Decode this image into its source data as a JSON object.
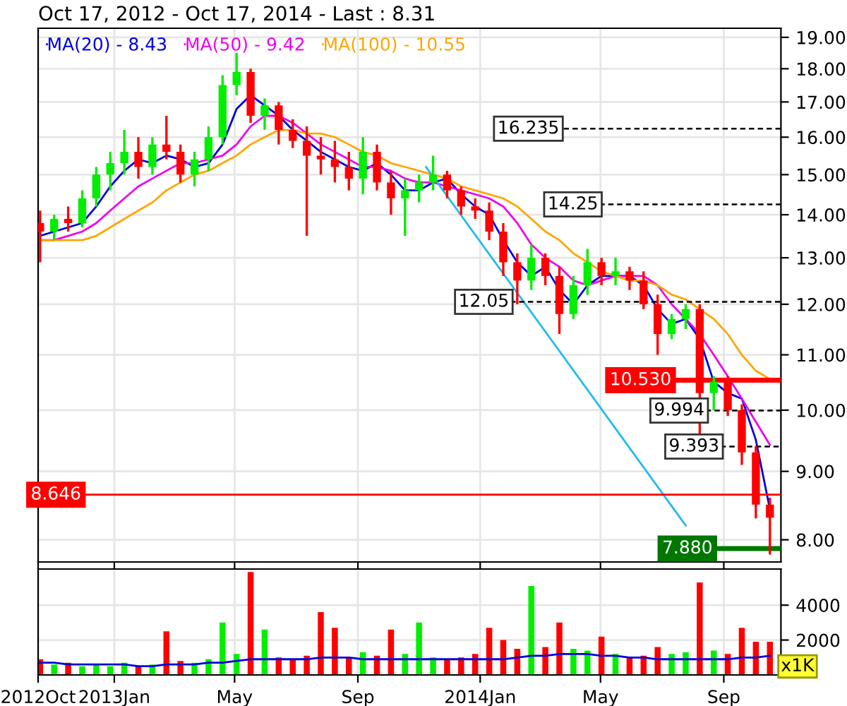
{
  "chart_data": [
    {
      "type": "candlestick",
      "title": "Oct 17, 2012 - Oct 17, 2014 - Last : 8.31",
      "log": "y",
      "tick_labels": "y",
      "grid": true,
      "legend": "top left",
      "x": [
        "2012-10-19",
        "2012-11-02",
        "2012-11-16",
        "2012-11-30",
        "2012-12-14",
        "2012-12-28",
        "2013-01-11",
        "2013-01-25",
        "2013-02-08",
        "2013-02-22",
        "2013-03-08",
        "2013-03-22",
        "2013-04-05",
        "2013-04-19",
        "2013-05-03",
        "2013-05-17",
        "2013-05-31",
        "2013-06-14",
        "2013-06-28",
        "2013-07-12",
        "2013-07-26",
        "2013-08-09",
        "2013-08-23",
        "2013-09-06",
        "2013-09-20",
        "2013-10-04",
        "2013-10-18",
        "2013-11-01",
        "2013-11-15",
        "2013-11-29",
        "2013-12-13",
        "2013-12-27",
        "2014-01-10",
        "2014-01-24",
        "2014-02-07",
        "2014-02-21",
        "2014-03-07",
        "2014-03-21",
        "2014-04-04",
        "2014-04-18",
        "2014-05-02",
        "2014-05-16",
        "2014-05-30",
        "2014-06-13",
        "2014-06-27",
        "2014-07-11",
        "2014-07-25",
        "2014-08-08",
        "2014-08-22",
        "2014-09-05",
        "2014-09-19",
        "2014-10-03",
        "2014-10-17"
      ],
      "ohlc": [
        [
          13.8,
          14.1,
          12.9,
          13.6
        ],
        [
          13.6,
          14.0,
          13.4,
          13.9
        ],
        [
          13.9,
          14.2,
          13.6,
          13.8
        ],
        [
          13.8,
          14.6,
          13.7,
          14.4
        ],
        [
          14.4,
          15.2,
          14.2,
          15.0
        ],
        [
          15.0,
          15.6,
          14.6,
          15.3
        ],
        [
          15.3,
          16.2,
          15.0,
          15.6
        ],
        [
          15.6,
          16.0,
          14.9,
          15.2
        ],
        [
          15.2,
          16.0,
          15.0,
          15.8
        ],
        [
          15.8,
          16.6,
          15.4,
          15.6
        ],
        [
          15.6,
          15.8,
          14.8,
          15.0
        ],
        [
          15.0,
          15.6,
          14.7,
          15.4
        ],
        [
          15.4,
          16.3,
          15.1,
          16.0
        ],
        [
          16.0,
          17.8,
          15.8,
          17.5
        ],
        [
          17.5,
          18.5,
          17.2,
          17.9
        ],
        [
          17.9,
          18.0,
          16.4,
          16.6
        ],
        [
          16.6,
          17.1,
          16.2,
          16.9
        ],
        [
          16.9,
          17.0,
          15.8,
          16.2
        ],
        [
          16.2,
          16.5,
          15.7,
          15.9
        ],
        [
          15.9,
          16.3,
          13.5,
          15.5
        ],
        [
          15.5,
          16.0,
          15.0,
          15.4
        ],
        [
          15.4,
          15.9,
          14.8,
          15.2
        ],
        [
          15.2,
          15.6,
          14.6,
          14.9
        ],
        [
          14.9,
          16.0,
          14.5,
          15.6
        ],
        [
          15.6,
          15.8,
          14.6,
          14.8
        ],
        [
          14.8,
          15.1,
          14.0,
          14.4
        ],
        [
          14.4,
          14.9,
          13.5,
          14.6
        ],
        [
          14.6,
          15.0,
          14.3,
          14.8
        ],
        [
          14.8,
          15.5,
          14.6,
          15.0
        ],
        [
          15.0,
          15.1,
          14.4,
          14.6
        ],
        [
          14.6,
          14.7,
          14.0,
          14.2
        ],
        [
          14.2,
          14.4,
          13.9,
          14.1
        ],
        [
          14.1,
          14.3,
          13.4,
          13.6
        ],
        [
          13.6,
          13.8,
          12.6,
          12.9
        ],
        [
          12.9,
          13.1,
          12.0,
          12.5
        ],
        [
          12.5,
          13.3,
          12.3,
          13.0
        ],
        [
          13.0,
          13.1,
          12.4,
          12.6
        ],
        [
          12.6,
          12.8,
          11.4,
          11.8
        ],
        [
          11.8,
          12.6,
          11.7,
          12.4
        ],
        [
          12.4,
          13.2,
          12.2,
          12.9
        ],
        [
          12.9,
          13.0,
          12.4,
          12.6
        ],
        [
          12.6,
          13.0,
          12.4,
          12.7
        ],
        [
          12.7,
          12.8,
          12.3,
          12.5
        ],
        [
          12.5,
          12.7,
          11.9,
          12.0
        ],
        [
          12.0,
          12.2,
          11.0,
          11.4
        ],
        [
          11.4,
          11.8,
          11.3,
          11.7
        ],
        [
          11.7,
          12.0,
          11.5,
          11.9
        ],
        [
          11.9,
          12.0,
          9.6,
          10.3
        ],
        [
          10.3,
          10.6,
          10.0,
          10.5
        ],
        [
          10.5,
          10.6,
          9.9,
          10.0
        ],
        [
          10.0,
          10.1,
          9.1,
          9.3
        ],
        [
          9.3,
          9.4,
          8.3,
          8.5
        ],
        [
          8.5,
          8.6,
          7.8,
          8.31
        ]
      ],
      "colors": [
        "#ff0000",
        "#00ee00",
        "#ff0000",
        "#00ee00",
        "#00ee00",
        "#00ee00",
        "#00ee00",
        "#ff0000",
        "#00ee00",
        "#ff0000",
        "#ff0000",
        "#00ee00",
        "#00ee00",
        "#00ee00",
        "#00ee00",
        "#ff0000",
        "#00ee00",
        "#ff0000",
        "#ff0000",
        "#ff0000",
        "#ff0000",
        "#ff0000",
        "#ff0000",
        "#00ee00",
        "#ff0000",
        "#ff0000",
        "#00ee00",
        "#00ee00",
        "#00ee00",
        "#ff0000",
        "#ff0000",
        "#ff0000",
        "#ff0000",
        "#ff0000",
        "#ff0000",
        "#00ee00",
        "#ff0000",
        "#ff0000",
        "#00ee00",
        "#00ee00",
        "#ff0000",
        "#00ee00",
        "#ff0000",
        "#ff0000",
        "#ff0000",
        "#00ee00",
        "#00ee00",
        "#ff0000",
        "#00ee00",
        "#ff0000",
        "#ff0000",
        "#ff0000",
        "#ff0000"
      ],
      "series": [
        {
          "type": "line",
          "name": "MA(20) - 8.43",
          "color": "#0000dd",
          "values": [
            13.5,
            13.6,
            13.7,
            13.8,
            14.2,
            14.7,
            15.1,
            15.4,
            15.3,
            15.5,
            15.4,
            15.2,
            15.3,
            15.8,
            16.8,
            17.2,
            16.9,
            16.6,
            16.2,
            15.9,
            15.6,
            15.4,
            15.2,
            15.1,
            15.3,
            15.0,
            14.6,
            14.6,
            14.8,
            14.9,
            14.5,
            14.2,
            14.0,
            13.4,
            12.9,
            12.6,
            12.8,
            12.3,
            12.0,
            12.4,
            12.6,
            12.6,
            12.6,
            12.4,
            11.9,
            11.6,
            11.7,
            11.3,
            10.5,
            10.3,
            10.2,
            9.5,
            8.43
          ]
        },
        {
          "type": "line",
          "name": "MA(50) - 9.42",
          "color": "#ee00ee",
          "values": [
            13.4,
            13.4,
            13.5,
            13.6,
            13.8,
            14.1,
            14.4,
            14.7,
            14.9,
            15.1,
            15.3,
            15.3,
            15.4,
            15.5,
            15.8,
            16.3,
            16.6,
            16.6,
            16.4,
            16.1,
            15.8,
            15.6,
            15.4,
            15.2,
            15.2,
            15.1,
            14.9,
            14.8,
            14.8,
            14.7,
            14.6,
            14.5,
            14.4,
            14.2,
            13.8,
            13.3,
            13.0,
            12.8,
            12.5,
            12.4,
            12.5,
            12.6,
            12.6,
            12.6,
            12.4,
            12.0,
            11.7,
            11.4,
            11.0,
            10.6,
            10.2,
            9.8,
            9.42
          ]
        },
        {
          "type": "line",
          "name": "MA(100) - 10.55",
          "color": "#ffa500",
          "values": [
            13.4,
            13.4,
            13.4,
            13.4,
            13.5,
            13.7,
            13.9,
            14.1,
            14.3,
            14.6,
            14.8,
            15.0,
            15.1,
            15.3,
            15.5,
            15.8,
            16.0,
            16.2,
            16.2,
            16.1,
            16.1,
            16.0,
            15.8,
            15.6,
            15.5,
            15.3,
            15.2,
            15.1,
            15.0,
            14.9,
            14.7,
            14.6,
            14.5,
            14.4,
            14.2,
            13.9,
            13.6,
            13.4,
            13.1,
            12.9,
            12.7,
            12.6,
            12.5,
            12.5,
            12.4,
            12.2,
            12.1,
            11.9,
            11.7,
            11.4,
            11.0,
            10.7,
            10.55
          ]
        },
        {
          "type": "line",
          "color": "#22bbee",
          "x": [
            "2013-11-08",
            "2014-07-25"
          ],
          "values": [
            15.2,
            8.2
          ]
        }
      ],
      "ref_lines": [
        {
          "axis": "y",
          "value": 16.235,
          "label": "16.235",
          "color": "#000000",
          "line_style": "dashed"
        },
        {
          "axis": "y",
          "value": 14.25,
          "label": "14.25",
          "color": "#000000",
          "line_style": "dashed"
        },
        {
          "axis": "y",
          "value": 12.05,
          "label": "12.05",
          "color": "#000000",
          "line_style": "dashed"
        },
        {
          "axis": "y",
          "value": 10.53,
          "label": "10.530",
          "color": "#ff0000",
          "line_style": "solid"
        },
        {
          "axis": "y",
          "value": 9.994,
          "label": "9.994",
          "color": "#000000",
          "line_style": "dashed"
        },
        {
          "axis": "y",
          "value": 9.393,
          "label": "9.393",
          "color": "#000000",
          "line_style": "dashed"
        },
        {
          "axis": "y",
          "value": 8.646,
          "label": "8.646",
          "color": "#ff0000",
          "line_style": "solid"
        },
        {
          "axis": "y",
          "value": 7.88,
          "label": "7.880",
          "color": "#007700",
          "line_style": "solid"
        }
      ],
      "xlim": [
        "2012-10-17",
        "2014-10-28"
      ],
      "ylim": [
        7.7,
        19.3
      ],
      "yticks": [
        {
          "value": 8,
          "label": "8.00"
        },
        {
          "value": 9,
          "label": "9.00"
        },
        {
          "value": 10,
          "label": "10.00"
        },
        {
          "value": 11,
          "label": "11.00"
        },
        {
          "value": 12,
          "label": "12.00"
        },
        {
          "value": 13,
          "label": "13.00"
        },
        {
          "value": 14,
          "label": "14.00"
        },
        {
          "value": 15,
          "label": "15.00"
        },
        {
          "value": 16,
          "label": "16.00"
        },
        {
          "value": 17,
          "label": "17.00"
        },
        {
          "value": 18,
          "label": "18.00"
        },
        {
          "value": 19,
          "label": "19.00"
        }
      ]
    },
    {
      "type": "bar",
      "ylabel": "x1K",
      "grid": true,
      "x": [
        "2012-10-19",
        "2012-11-02",
        "2012-11-16",
        "2012-11-30",
        "2012-12-14",
        "2012-12-28",
        "2013-01-11",
        "2013-01-25",
        "2013-02-08",
        "2013-02-22",
        "2013-03-08",
        "2013-03-22",
        "2013-04-05",
        "2013-04-19",
        "2013-05-03",
        "2013-05-17",
        "2013-05-31",
        "2013-06-14",
        "2013-06-28",
        "2013-07-12",
        "2013-07-26",
        "2013-08-09",
        "2013-08-23",
        "2013-09-06",
        "2013-09-20",
        "2013-10-04",
        "2013-10-18",
        "2013-11-01",
        "2013-11-15",
        "2013-11-29",
        "2013-12-13",
        "2013-12-27",
        "2014-01-10",
        "2014-01-24",
        "2014-02-07",
        "2014-02-21",
        "2014-03-07",
        "2014-03-21",
        "2014-04-04",
        "2014-04-18",
        "2014-05-02",
        "2014-05-16",
        "2014-05-30",
        "2014-06-13",
        "2014-06-27",
        "2014-07-11",
        "2014-07-25",
        "2014-08-08",
        "2014-08-22",
        "2014-09-05",
        "2014-09-19",
        "2014-10-03",
        "2014-10-17"
      ],
      "series": [
        {
          "type": "bar",
          "colors": [
            "#ff0000",
            "#00ee00",
            "#ff0000",
            "#00ee00",
            "#00ee00",
            "#00ee00",
            "#00ee00",
            "#ff0000",
            "#00ee00",
            "#ff0000",
            "#ff0000",
            "#00ee00",
            "#00ee00",
            "#00ee00",
            "#00ee00",
            "#ff0000",
            "#00ee00",
            "#ff0000",
            "#ff0000",
            "#ff0000",
            "#ff0000",
            "#ff0000",
            "#ff0000",
            "#00ee00",
            "#ff0000",
            "#ff0000",
            "#00ee00",
            "#00ee00",
            "#00ee00",
            "#ff0000",
            "#ff0000",
            "#ff0000",
            "#ff0000",
            "#ff0000",
            "#ff0000",
            "#00ee00",
            "#ff0000",
            "#ff0000",
            "#00ee00",
            "#00ee00",
            "#ff0000",
            "#00ee00",
            "#ff0000",
            "#ff0000",
            "#ff0000",
            "#00ee00",
            "#00ee00",
            "#ff0000",
            "#00ee00",
            "#ff0000",
            "#ff0000",
            "#ff0000",
            "#ff0000"
          ],
          "values": [
            900,
            600,
            700,
            500,
            600,
            500,
            700,
            500,
            600,
            2500,
            800,
            700,
            900,
            3000,
            1200,
            5900,
            2600,
            1000,
            900,
            1100,
            3600,
            2700,
            1000,
            1300,
            1100,
            2600,
            1200,
            3000,
            1000,
            900,
            1000,
            1200,
            2700,
            2000,
            1500,
            5100,
            1600,
            3000,
            1500,
            1400,
            2200,
            1200,
            1000,
            1100,
            1600,
            1200,
            1300,
            5300,
            1400,
            1200,
            2700,
            1900,
            1900
          ]
        },
        {
          "type": "line",
          "color": "#0000dd",
          "values": [
            700,
            700,
            600,
            600,
            600,
            600,
            600,
            500,
            500,
            600,
            600,
            600,
            700,
            700,
            800,
            900,
            900,
            900,
            900,
            900,
            1000,
            1000,
            1000,
            900,
            900,
            900,
            900,
            900,
            900,
            900,
            900,
            900,
            900,
            900,
            1000,
            1100,
            1100,
            1200,
            1200,
            1200,
            1100,
            1100,
            1000,
            1000,
            900,
            900,
            900,
            900,
            900,
            900,
            1000,
            1000,
            1100
          ]
        }
      ],
      "xlim": [
        "2012-10-17",
        "2014-10-28"
      ],
      "xticks": [
        {
          "value": "2012-10-17",
          "label": "2012Oct"
        },
        {
          "value": "2013-01-01",
          "label": "2013Jan"
        },
        {
          "value": "2013-05-01",
          "label": "May"
        },
        {
          "value": "2013-09-01",
          "label": "Sep"
        },
        {
          "value": "2014-01-01",
          "label": "2014Jan"
        },
        {
          "value": "2014-05-01",
          "label": "May"
        },
        {
          "value": "2014-09-01",
          "label": "Sep"
        }
      ],
      "ylim": [
        0,
        6070
      ],
      "yticks": [
        2000,
        4000
      ]
    }
  ]
}
